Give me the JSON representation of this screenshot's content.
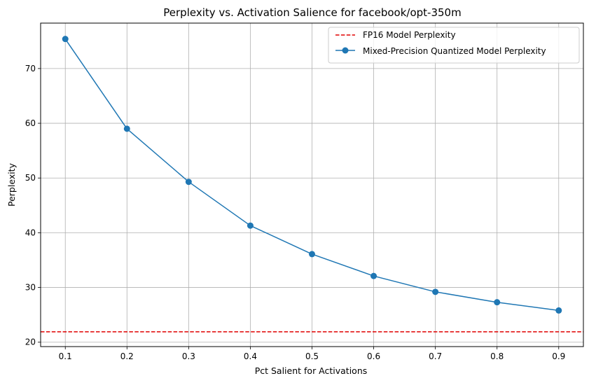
{
  "chart_data": {
    "type": "line",
    "title": "Perplexity vs. Activation Salience for facebook/opt-350m",
    "xlabel": "Pct Salient for Activations",
    "ylabel": "Perplexity",
    "xlim": [
      0.06,
      0.94
    ],
    "ylim": [
      19.2,
      78.3
    ],
    "xticks": [
      0.1,
      0.2,
      0.3,
      0.4,
      0.5,
      0.6,
      0.7,
      0.8,
      0.9
    ],
    "xtick_labels": [
      "0.1",
      "0.2",
      "0.3",
      "0.4",
      "0.5",
      "0.6",
      "0.7",
      "0.8",
      "0.9"
    ],
    "yticks": [
      20,
      30,
      40,
      50,
      60,
      70
    ],
    "ytick_labels": [
      "20",
      "30",
      "40",
      "50",
      "60",
      "70"
    ],
    "grid": true,
    "legend_position": "top-right",
    "hlines": [
      {
        "name": "FP16 Model Perplexity",
        "y": 21.9,
        "color": "#e00000",
        "style": "dashed"
      }
    ],
    "series": [
      {
        "name": "Mixed-Precision Quantized Model Perplexity",
        "color": "#1f77b4",
        "marker": "circle",
        "x": [
          0.1,
          0.2,
          0.3,
          0.4,
          0.5,
          0.6,
          0.7,
          0.8,
          0.9
        ],
        "y": [
          75.4,
          59.0,
          49.3,
          41.3,
          36.1,
          32.1,
          29.2,
          27.3,
          25.8
        ]
      }
    ]
  }
}
